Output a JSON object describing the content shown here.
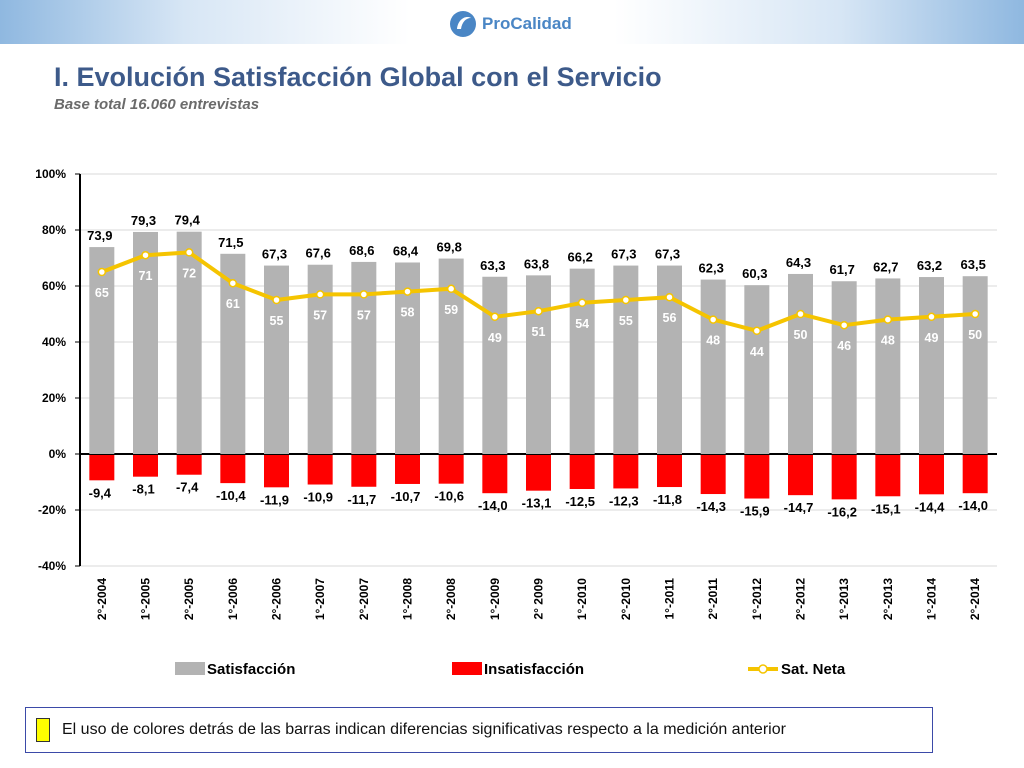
{
  "header": {
    "logo_text": "ProCalidad"
  },
  "title": "I. Evolución Satisfacción Global con el Servicio",
  "subtitle": "Base total 16.060 entrevistas",
  "note": "El uso de colores detrás de las barras indican diferencias significativas respecto a la medición anterior",
  "colors": {
    "satisfaction": "#b3b3b3",
    "dissatisfaction": "#ff0000",
    "net": "#f5c400",
    "title": "#3d5a8a",
    "note_swatch": "#ffff00"
  },
  "chart_data": {
    "type": "bar",
    "categories": [
      "2°-2004",
      "1°-2005",
      "2°-2005",
      "1°-2006",
      "2°-2006",
      "1°-2007",
      "2°-2007",
      "1°-2008",
      "2°-2008",
      "1°-2009",
      "2° 2009",
      "1°-2010",
      "2°-2010",
      "1°-2011",
      "2°-2011",
      "1°-2012",
      "2°-2012",
      "1°-2013",
      "2°-2013",
      "1°-2014",
      "2°-2014"
    ],
    "series": [
      {
        "name": "Satisfacción",
        "kind": "bar",
        "values": [
          73.9,
          79.3,
          79.4,
          71.5,
          67.3,
          67.6,
          68.6,
          68.4,
          69.8,
          63.3,
          63.8,
          66.2,
          67.3,
          67.3,
          62.3,
          60.3,
          64.3,
          61.7,
          62.7,
          63.2,
          63.5
        ],
        "labels": [
          "73,9",
          "79,3",
          "79,4",
          "71,5",
          "67,3",
          "67,6",
          "68,6",
          "68,4",
          "69,8",
          "63,3",
          "63,8",
          "66,2",
          "67,3",
          "67,3",
          "62,3",
          "60,3",
          "64,3",
          "61,7",
          "62,7",
          "63,2",
          "63,5"
        ]
      },
      {
        "name": "Insatisfacción",
        "kind": "bar",
        "values": [
          -9.4,
          -8.1,
          -7.4,
          -10.4,
          -11.9,
          -10.9,
          -11.7,
          -10.7,
          -10.6,
          -14.0,
          -13.1,
          -12.5,
          -12.3,
          -11.8,
          -14.3,
          -15.9,
          -14.7,
          -16.2,
          -15.1,
          -14.4,
          -14.0
        ],
        "labels": [
          "-9,4",
          "-8,1",
          "-7,4",
          "-10,4",
          "-11,9",
          "-10,9",
          "-11,7",
          "-10,7",
          "-10,6",
          "-14,0",
          "-13,1",
          "-12,5",
          "-12,3",
          "-11,8",
          "-14,3",
          "-15,9",
          "-14,7",
          "-16,2",
          "-15,1",
          "-14,4",
          "-14,0"
        ]
      },
      {
        "name": "Sat. Neta",
        "kind": "line",
        "values": [
          65,
          71,
          72,
          61,
          55,
          57,
          57,
          58,
          59,
          49,
          51,
          54,
          55,
          56,
          48,
          44,
          50,
          46,
          48,
          49,
          50
        ],
        "labels": [
          "65",
          "71",
          "72",
          "61",
          "55",
          "57",
          "57",
          "58",
          "59",
          "49",
          "51",
          "54",
          "55",
          "56",
          "48",
          "44",
          "50",
          "46",
          "48",
          "49",
          "50"
        ]
      }
    ],
    "y_ticks": [
      "100%",
      "80%",
      "60%",
      "40%",
      "20%",
      "0%",
      "-20%",
      "-40%"
    ],
    "y_tick_values": [
      100,
      80,
      60,
      40,
      20,
      0,
      -20,
      -40
    ],
    "ylim": [
      -40,
      100
    ],
    "legend": [
      "Satisfacción",
      "Insatisfacción",
      "Sat. Neta"
    ],
    "legend_position": "bottom",
    "grid": true
  }
}
